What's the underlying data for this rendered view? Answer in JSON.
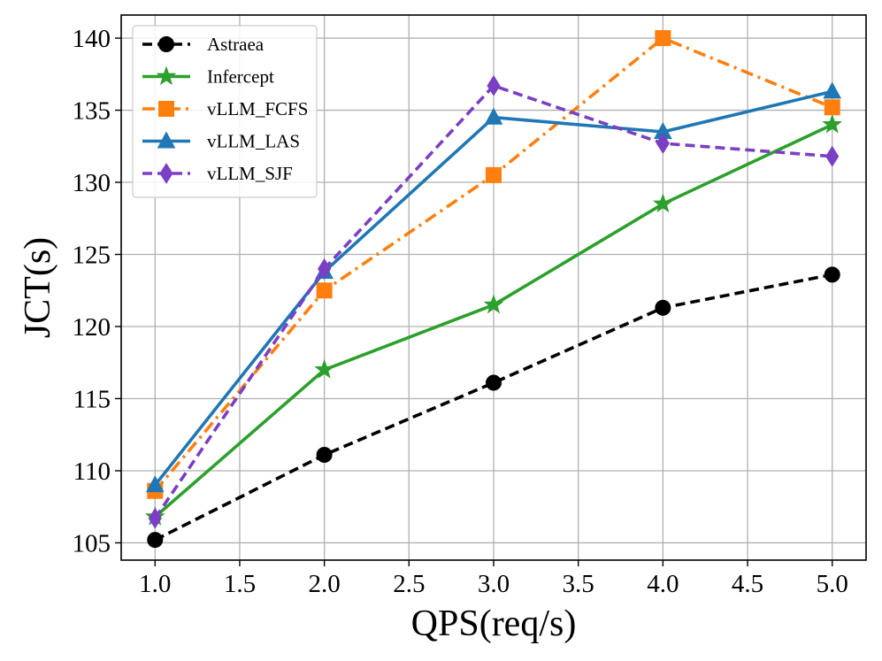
{
  "chart_data": {
    "type": "line",
    "title": "",
    "xlabel": "QPS(req/s)",
    "ylabel": "JCT(s)",
    "x": [
      1.0,
      2.0,
      3.0,
      4.0,
      5.0
    ],
    "xlim": [
      0.8,
      5.2
    ],
    "ylim": [
      103.8,
      141.6
    ],
    "xticks": [
      1.0,
      1.5,
      2.0,
      2.5,
      3.0,
      3.5,
      4.0,
      4.5,
      5.0
    ],
    "xtick_labels": [
      "1.0",
      "1.5",
      "2.0",
      "2.5",
      "3.0",
      "3.5",
      "4.0",
      "4.5",
      "5.0"
    ],
    "yticks": [
      105,
      110,
      115,
      120,
      125,
      130,
      135,
      140
    ],
    "ytick_labels": [
      "105",
      "110",
      "115",
      "120",
      "125",
      "130",
      "135",
      "140"
    ],
    "grid": true,
    "legend_position": "top-left",
    "series": [
      {
        "name": "Astraea",
        "values": [
          105.2,
          111.1,
          116.1,
          121.3,
          123.6
        ],
        "color": "#000000",
        "dash": "dashed",
        "marker": "circle"
      },
      {
        "name": "Infercept",
        "values": [
          106.8,
          117.0,
          121.5,
          128.5,
          134.0
        ],
        "color": "#2ca02c",
        "dash": "solid",
        "marker": "star"
      },
      {
        "name": "vLLM_FCFS",
        "values": [
          108.6,
          122.5,
          130.5,
          140.0,
          135.2
        ],
        "color": "#ff7f0e",
        "dash": "dashdot",
        "marker": "square"
      },
      {
        "name": "vLLM_LAS",
        "values": [
          109.0,
          123.8,
          134.5,
          133.5,
          136.3
        ],
        "color": "#1f77b4",
        "dash": "solid",
        "marker": "triangle"
      },
      {
        "name": "vLLM_SJF",
        "values": [
          106.7,
          124.0,
          136.7,
          132.7,
          131.8
        ],
        "color": "#7b3fc4",
        "dash": "dashed",
        "marker": "diamond"
      }
    ]
  }
}
